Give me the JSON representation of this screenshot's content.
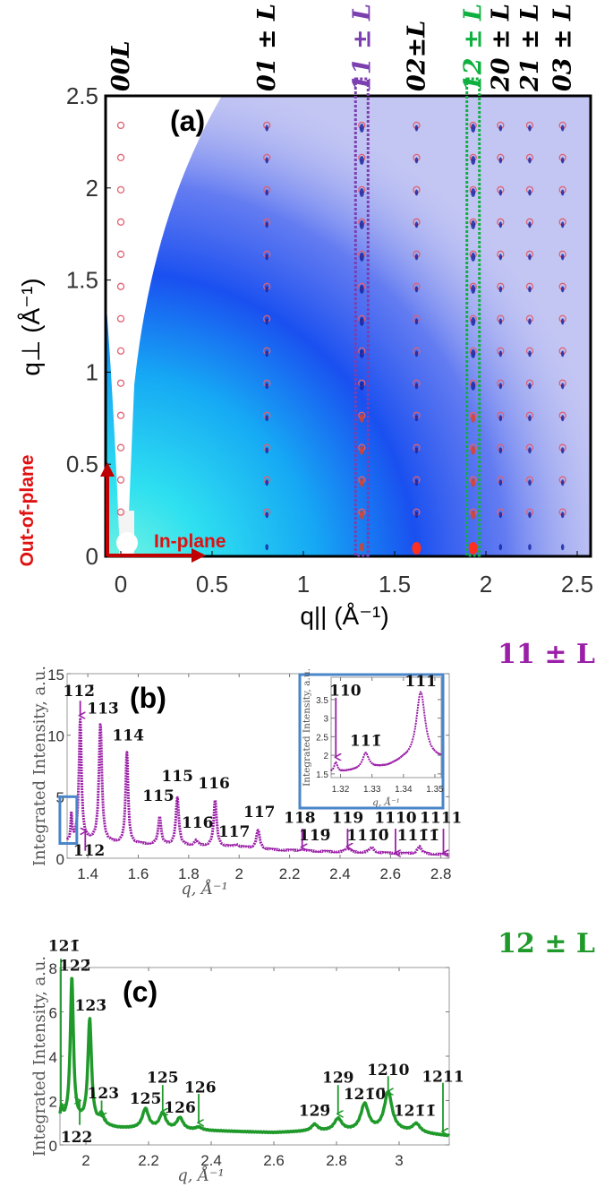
{
  "colors": {
    "purple": "#9b1fa8",
    "green": "#1f9a2a",
    "rod11": "#7b3fb0",
    "rod12": "#10b040",
    "red": "#d01010",
    "inset_box": "#4a86c8"
  },
  "panel_a": {
    "label": "(a)",
    "xlabel": "q|| (Å⁻¹)",
    "ylabel": "q⊥ (Å⁻¹)",
    "xlim": [
      -0.08,
      2.55
    ],
    "ylim": [
      0,
      2.5
    ],
    "xticks": [
      {
        "v": 0,
        "t": "0"
      },
      {
        "v": 0.5,
        "t": "0.5"
      },
      {
        "v": 1,
        "t": "1"
      },
      {
        "v": 1.5,
        "t": "1.5"
      },
      {
        "v": 2,
        "t": "2"
      },
      {
        "v": 2.5,
        "t": "2.5"
      }
    ],
    "yticks": [
      {
        "v": 0,
        "t": "0"
      },
      {
        "v": 0.5,
        "t": "0.5"
      },
      {
        "v": 1,
        "t": "1"
      },
      {
        "v": 1.5,
        "t": "1.5"
      },
      {
        "v": 2,
        "t": "2"
      },
      {
        "v": 2.5,
        "t": "2.5"
      }
    ],
    "rods": [
      {
        "label": "00L",
        "q": 0.0,
        "color": "#000"
      },
      {
        "label": "01 ± L",
        "q": 0.8,
        "color": "#000"
      },
      {
        "label": "11 ± L",
        "q": 1.32,
        "color": "#7b3fb0",
        "highlight": true
      },
      {
        "label": "02±L",
        "q": 1.62,
        "color": "#000"
      },
      {
        "label": "12 ± L",
        "q": 1.93,
        "color": "#10b040",
        "highlight": true
      },
      {
        "label": "20 ± L",
        "q": 2.08,
        "color": "#000"
      },
      {
        "label": "21 ± L",
        "q": 2.24,
        "color": "#000"
      },
      {
        "label": "03 ± L",
        "q": 2.42,
        "color": "#000"
      }
    ],
    "out_of_plane": "Out-of-plane",
    "in_plane": "In-plane"
  },
  "chart_data": [
    {
      "type": "line",
      "title": "11 ± L",
      "label": "(b)",
      "xlabel": "q, Å⁻¹",
      "ylabel": "Integrated Intensity, a.u.",
      "xlim": [
        1.318,
        2.833
      ],
      "ylim": [
        0,
        15
      ],
      "xticks": [
        "1.4",
        "1.6",
        "1.8",
        "2",
        "2.2",
        "2.4",
        "2.6",
        "2.8"
      ],
      "yticks": [
        "0",
        "5",
        "10",
        "15"
      ],
      "background": [
        [
          1.318,
          1.3
        ],
        [
          1.36,
          1.5
        ],
        [
          1.5,
          1.2
        ],
        [
          1.8,
          1.0
        ],
        [
          2.0,
          0.9
        ],
        [
          2.1,
          0.7
        ],
        [
          2.4,
          0.5
        ],
        [
          2.833,
          0.3
        ]
      ],
      "peaks": [
        {
          "q": 1.335,
          "I": 3.5,
          "w": 0.003
        },
        {
          "q": 1.37,
          "I": 11.2,
          "w": 0.006
        },
        {
          "q": 1.45,
          "I": 10.9,
          "w": 0.007
        },
        {
          "q": 1.555,
          "I": 8.6,
          "w": 0.006
        },
        {
          "q": 1.685,
          "I": 3.3,
          "w": 0.007
        },
        {
          "q": 1.755,
          "I": 4.9,
          "w": 0.007
        },
        {
          "q": 1.83,
          "I": 1.4,
          "w": 0.008
        },
        {
          "q": 1.905,
          "I": 4.7,
          "w": 0.007
        },
        {
          "q": 1.99,
          "I": 1.1,
          "w": 0.008
        },
        {
          "q": 2.075,
          "I": 2.3,
          "w": 0.008
        },
        {
          "q": 2.25,
          "I": 0.75,
          "w": 0.01
        },
        {
          "q": 2.43,
          "I": 0.85,
          "w": 0.01
        },
        {
          "q": 2.525,
          "I": 0.9,
          "w": 0.01
        },
        {
          "q": 2.715,
          "I": 0.95,
          "w": 0.01
        }
      ],
      "annotations": [
        {
          "text": "112̄",
          "q": 1.365,
          "y": 13.6,
          "arrow": [
            1.37,
            12.8,
            11.6
          ]
        },
        {
          "text": "112",
          "q": 1.405,
          "y": -0.9,
          "arrow": [
            1.39,
            0.6,
            2.2
          ]
        },
        {
          "text": "113̄",
          "q": 1.46,
          "y": 12.2
        },
        {
          "text": "114̄",
          "q": 1.56,
          "y": 10.0
        },
        {
          "text": "115̄",
          "q": 1.68,
          "y": 5.1
        },
        {
          "text": "115",
          "q": 1.755,
          "y": 6.7
        },
        {
          "text": "116̄",
          "q": 1.835,
          "y": 2.9
        },
        {
          "text": "116",
          "q": 1.9,
          "y": 6.1
        },
        {
          "text": "117̄",
          "q": 1.98,
          "y": 2.2
        },
        {
          "text": "117",
          "q": 2.08,
          "y": 3.8
        },
        {
          "text": "118",
          "q": 2.24,
          "y": 3.3,
          "arrow": [
            2.25,
            2.4,
            0.9
          ]
        },
        {
          "text": "119̄",
          "q": 2.3,
          "y": 1.9
        },
        {
          "text": "119",
          "q": 2.43,
          "y": 3.3,
          "arrow": [
            2.43,
            2.4,
            0.95
          ]
        },
        {
          "text": "111̄0̄",
          "q": 2.51,
          "y": 1.9
        },
        {
          "text": "1110",
          "q": 2.62,
          "y": 3.3,
          "arrow": [
            2.62,
            2.4,
            0.4
          ]
        },
        {
          "text": "111̄1̄",
          "q": 2.71,
          "y": 1.9
        },
        {
          "text": "1111",
          "q": 2.8,
          "y": 3.3,
          "arrow": [
            2.81,
            2.4,
            0.4
          ]
        }
      ],
      "highlight_region": {
        "q": [
          1.3,
          1.36
        ],
        "I": [
          1.2,
          5.0
        ]
      }
    },
    {
      "type": "line",
      "inset": true,
      "xlabel": "q, Å⁻¹",
      "ylabel": "Integrated Intensity, a.u.",
      "xlim": [
        1.317,
        1.352
      ],
      "ylim": [
        1.4,
        4.1
      ],
      "xticks": [
        "1.32",
        "1.33",
        "1.34",
        "1.35"
      ],
      "yticks": [
        "1.5",
        "2",
        "2.5",
        "3",
        "3.5"
      ],
      "background": [
        [
          1.317,
          1.55
        ],
        [
          1.32,
          1.55
        ],
        [
          1.335,
          1.7
        ],
        [
          1.34,
          1.85
        ],
        [
          1.352,
          1.9
        ]
      ],
      "peaks": [
        {
          "q": 1.3185,
          "I": 1.8,
          "w": 0.0006
        },
        {
          "q": 1.328,
          "I": 2.05,
          "w": 0.0012
        },
        {
          "q": 1.3455,
          "I": 3.7,
          "w": 0.0017
        }
      ],
      "annotations": [
        {
          "text": "110",
          "q": 1.3215,
          "y": 3.75,
          "arrow": [
            1.3185,
            3.55,
            1.95
          ]
        },
        {
          "text": "111̄",
          "q": 1.328,
          "y": 2.4
        },
        {
          "text": "111",
          "q": 1.3455,
          "y": 4.0
        }
      ]
    },
    {
      "type": "line",
      "title": "12 ± L",
      "label": "(c)",
      "xlabel": "q, Å⁻¹",
      "ylabel": "Integrated Intensity, a.u.",
      "xlim": [
        1.917,
        3.16
      ],
      "ylim": [
        0,
        8
      ],
      "xticks": [
        "2",
        "2.2",
        "2.4",
        "2.6",
        "2.8",
        "3"
      ],
      "yticks": [
        "0",
        "2",
        "4",
        "6",
        "8"
      ],
      "background": [
        [
          1.917,
          1.0
        ],
        [
          1.94,
          1.1
        ],
        [
          2.1,
          0.75
        ],
        [
          2.6,
          0.55
        ],
        [
          2.7,
          0.6
        ],
        [
          3.0,
          0.6
        ],
        [
          3.16,
          0.4
        ]
      ],
      "peaks": [
        {
          "q": 1.922,
          "I": 1.6,
          "w": 0.004
        },
        {
          "q": 1.955,
          "I": 7.5,
          "w": 0.006
        },
        {
          "q": 2.012,
          "I": 5.6,
          "w": 0.007
        },
        {
          "q": 2.05,
          "I": 1.3,
          "w": 0.008
        },
        {
          "q": 2.19,
          "I": 1.6,
          "w": 0.012
        },
        {
          "q": 2.245,
          "I": 1.4,
          "w": 0.012
        },
        {
          "q": 2.3,
          "I": 1.2,
          "w": 0.012
        },
        {
          "q": 2.36,
          "I": 0.78,
          "w": 0.012
        },
        {
          "q": 2.73,
          "I": 0.9,
          "w": 0.012
        },
        {
          "q": 2.805,
          "I": 1.15,
          "w": 0.015
        },
        {
          "q": 2.89,
          "I": 1.8,
          "w": 0.015
        },
        {
          "q": 2.965,
          "I": 2.35,
          "w": 0.015
        },
        {
          "q": 3.055,
          "I": 0.92,
          "w": 0.015
        }
      ],
      "annotations": [
        {
          "text": "121̄",
          "q": 1.93,
          "y": 8.7,
          "arrow": [
            1.92,
            8.4,
            1.7
          ]
        },
        {
          "text": "122̄",
          "q": 1.965,
          "y": 8.1
        },
        {
          "text": "122",
          "q": 1.97,
          "y": -0.6,
          "arrow": [
            1.98,
            0.9,
            2.0
          ]
        },
        {
          "text": "123̄",
          "q": 2.015,
          "y": 6.3
        },
        {
          "text": "123",
          "q": 2.055,
          "y": 2.35,
          "arrow": [
            2.05,
            2.0,
            1.3
          ]
        },
        {
          "text": "125̄",
          "q": 2.19,
          "y": 2.1
        },
        {
          "text": "125",
          "q": 2.245,
          "y": 3.05,
          "arrow": [
            2.245,
            2.7,
            1.5
          ]
        },
        {
          "text": "126̄",
          "q": 2.3,
          "y": 1.7
        },
        {
          "text": "126",
          "q": 2.365,
          "y": 2.6,
          "arrow": [
            2.36,
            2.3,
            1.0
          ]
        },
        {
          "text": "129̄",
          "q": 2.73,
          "y": 1.55
        },
        {
          "text": "129",
          "q": 2.805,
          "y": 3.05,
          "arrow": [
            2.805,
            2.7,
            1.4
          ]
        },
        {
          "text": "121̄0̄",
          "q": 2.89,
          "y": 2.3
        },
        {
          "text": "1210",
          "q": 2.965,
          "y": 3.4,
          "arrow": [
            2.965,
            3.1,
            2.4
          ]
        },
        {
          "text": "121̄1̄",
          "q": 3.05,
          "y": 1.55
        },
        {
          "text": "1211",
          "q": 3.14,
          "y": 3.1,
          "arrow": [
            3.14,
            2.8,
            0.6
          ]
        }
      ]
    }
  ]
}
